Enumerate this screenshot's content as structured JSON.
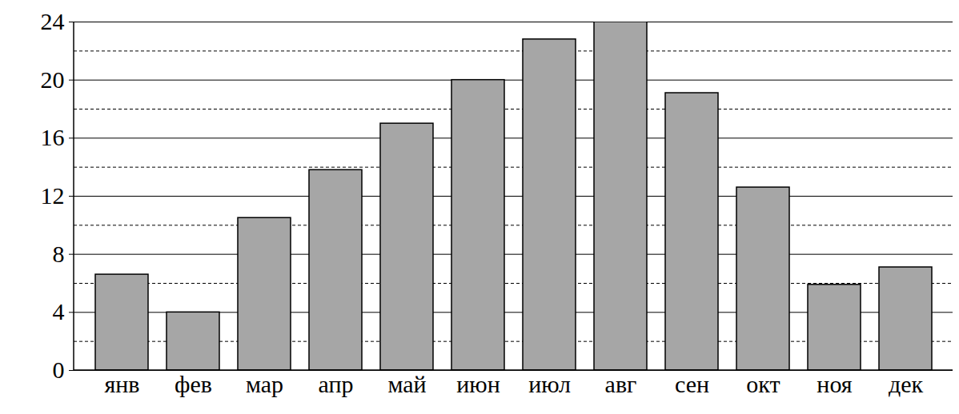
{
  "chart_data": {
    "type": "bar",
    "categories": [
      "янв",
      "фев",
      "мар",
      "апр",
      "май",
      "июн",
      "июл",
      "авг",
      "сен",
      "окт",
      "ноя",
      "дек"
    ],
    "values": [
      6.6,
      4,
      10.5,
      13.8,
      17,
      20,
      22.8,
      24,
      19.1,
      12.6,
      5.9,
      7.1
    ],
    "color": "#a6a6a6",
    "ylim": [
      0,
      24
    ],
    "yticks": [
      0,
      4,
      8,
      12,
      16,
      20,
      24
    ],
    "grid": true
  }
}
